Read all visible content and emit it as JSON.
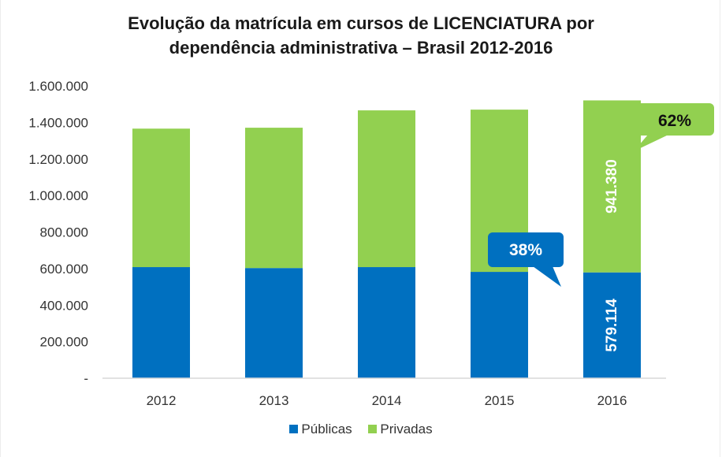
{
  "chart_data": {
    "type": "bar",
    "stacked": true,
    "title": "Evolução da matrícula em cursos de LICENCIATURA por dependência administrativa – Brasil 2012-2016",
    "title_lines": [
      "Evolução da matrícula em cursos de LICENCIATURA por",
      "dependência administrativa – Brasil 2012-2016"
    ],
    "xlabel": "",
    "ylabel": "",
    "categories": [
      "2012",
      "2013",
      "2014",
      "2015",
      "2016"
    ],
    "series": [
      {
        "name": "Públicas",
        "color": "#0070C0",
        "values": [
          608000,
          603000,
          608000,
          582000,
          579114
        ]
      },
      {
        "name": "Privadas",
        "color": "#92D050",
        "values": [
          758000,
          768000,
          858000,
          888000,
          941380
        ]
      }
    ],
    "ylim": [
      0,
      1600000
    ],
    "yticks": [
      0,
      200000,
      400000,
      600000,
      800000,
      1000000,
      1200000,
      1400000,
      1600000
    ],
    "ytick_labels": [
      "-",
      "200.000",
      "400.000",
      "600.000",
      "800.000",
      "1.000.000",
      "1.200.000",
      "1.400.000",
      "1.600.000"
    ],
    "grid": false,
    "legend_position": "bottom",
    "data_labels": [
      {
        "series": "Públicas",
        "category": "2016",
        "text": "579.114"
      },
      {
        "series": "Privadas",
        "category": "2016",
        "text": "941.380"
      }
    ],
    "annotations": [
      {
        "text": "38%",
        "series": "Públicas",
        "category": "2016",
        "background": "#0070C0",
        "text_color": "#ffffff"
      },
      {
        "text": "62%",
        "series": "Privadas",
        "category": "2016",
        "background": "#92D050",
        "text_color": "#111111"
      }
    ]
  }
}
